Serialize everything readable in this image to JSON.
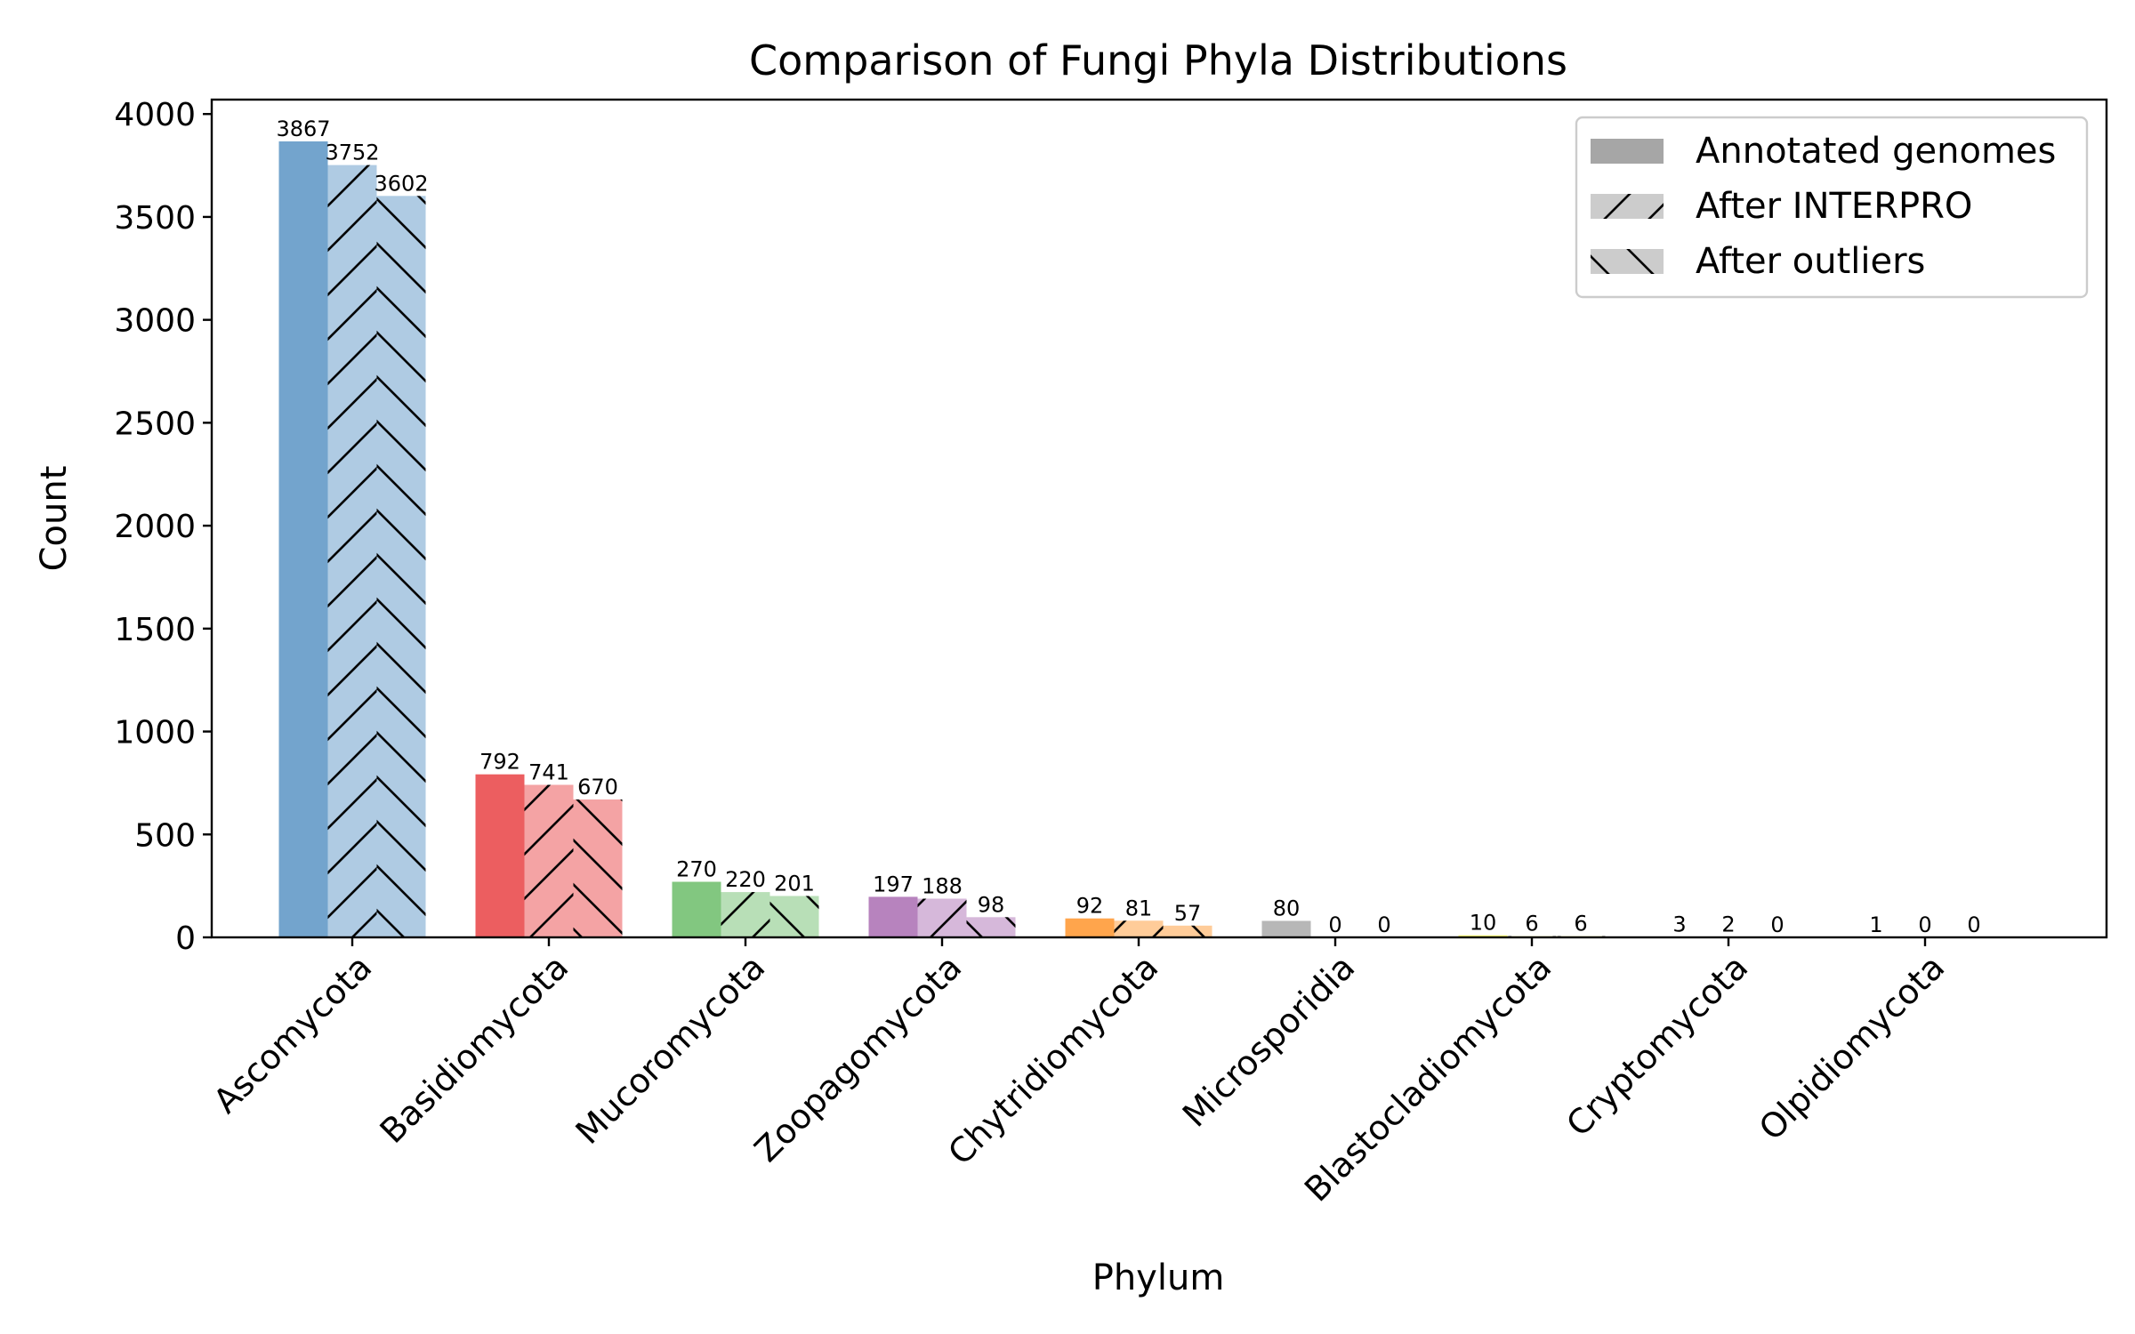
{
  "chart_data": {
    "type": "bar",
    "title": "Comparison of Fungi Phyla Distributions",
    "xlabel": "Phylum",
    "ylabel": "Count",
    "ylim": [
      0,
      4070
    ],
    "yticks": [
      0,
      500,
      1000,
      1500,
      2000,
      2500,
      3000,
      3500,
      4000
    ],
    "grid": false,
    "legend_position": "top-right",
    "categories": [
      "Ascomycota",
      "Basidiomycota",
      "Mucoromycota",
      "Zoopagomycota",
      "Chytridiomycota",
      "Microsporidia",
      "Blastocladiomycota",
      "Cryptomycota",
      "Olpidiomycota"
    ],
    "category_colors": [
      "#377eb8",
      "#e41a1c",
      "#4daf4a",
      "#984ea3",
      "#ff7f00",
      "#999999",
      "#ffff33",
      "#a65628",
      "#f781bf"
    ],
    "series": [
      {
        "name": "Annotated genomes",
        "hatch": "none",
        "values": [
          3867,
          792,
          270,
          197,
          92,
          80,
          10,
          3,
          1
        ]
      },
      {
        "name": "After INTERPRO",
        "hatch": "forward-slash",
        "values": [
          3752,
          741,
          220,
          188,
          81,
          0,
          6,
          2,
          0
        ]
      },
      {
        "name": "After outliers",
        "hatch": "back-slash",
        "values": [
          3602,
          670,
          201,
          98,
          57,
          0,
          6,
          0,
          0
        ]
      }
    ]
  }
}
